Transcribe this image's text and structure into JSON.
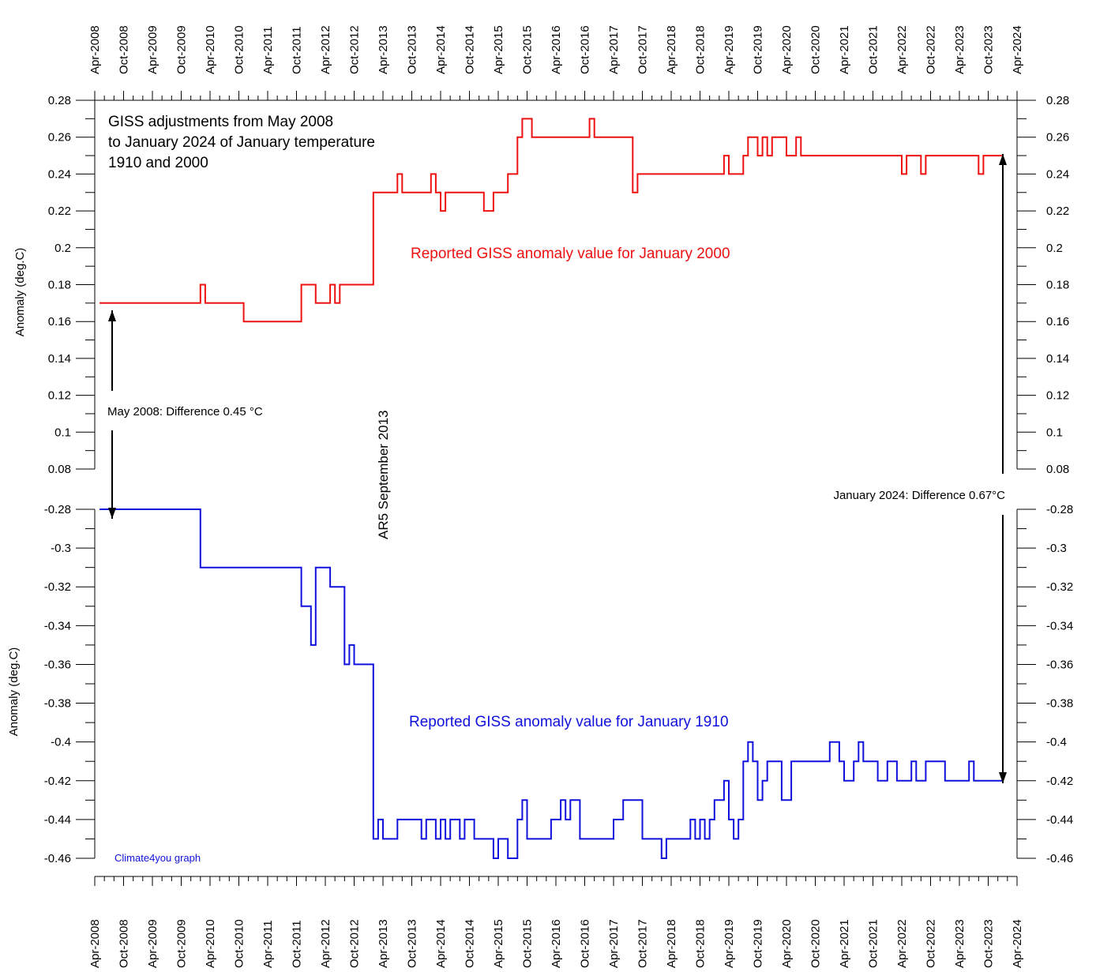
{
  "chart_data": {
    "type": "line",
    "title_lines": [
      "GISS adjustments from May 2008",
      "to January 2024 of January temperature",
      "1910 and 2000"
    ],
    "x_tick_labels": [
      "Apr-2008",
      "Oct-2008",
      "Apr-2009",
      "Oct-2009",
      "Apr-2010",
      "Oct-2010",
      "Apr-2011",
      "Oct-2011",
      "Apr-2012",
      "Oct-2012",
      "Apr-2013",
      "Oct-2013",
      "Apr-2014",
      "Oct-2014",
      "Apr-2015",
      "Oct-2015",
      "Apr-2016",
      "Oct-2016",
      "Apr-2017",
      "Oct-2017",
      "Apr-2018",
      "Oct-2018",
      "Apr-2019",
      "Oct-2019",
      "Apr-2020",
      "Oct-2020",
      "Apr-2021",
      "Oct-2021",
      "Apr-2022",
      "Oct-2022",
      "Apr-2023",
      "Oct-2023",
      "Apr-2024"
    ],
    "x_range": [
      "2008-04",
      "2024-04"
    ],
    "upper_panel": {
      "ylabel": "Anomaly (deg.C)",
      "ylim": [
        0.08,
        0.28
      ],
      "yticks": [
        "0.28",
        "0.26",
        "0.24",
        "0.22",
        "0.2",
        "0.18",
        "0.16",
        "0.14",
        "0.12",
        "0.1",
        "0.08"
      ],
      "series": {
        "name": "Reported GISS anomaly value for January 2000",
        "color": "#ee1111",
        "x": [
          "2008-05",
          "2010-02",
          "2010-03",
          "2010-11",
          "2011-11",
          "2012-02",
          "2012-05",
          "2012-06",
          "2012-07",
          "2012-09",
          "2013-02",
          "2013-07",
          "2013-08",
          "2014-02",
          "2014-03",
          "2014-04",
          "2014-05",
          "2015-01",
          "2015-03",
          "2015-06",
          "2015-08",
          "2015-09",
          "2015-10",
          "2015-11",
          "2016-11",
          "2016-12",
          "2017-08",
          "2017-09",
          "2019-03",
          "2019-04",
          "2019-07",
          "2019-08",
          "2019-10",
          "2019-11",
          "2019-12",
          "2020-01",
          "2020-04",
          "2020-06",
          "2020-07",
          "2022-04",
          "2022-05",
          "2022-08",
          "2022-09",
          "2023-08",
          "2023-09",
          "2023-11"
        ],
        "values": [
          0.17,
          0.18,
          0.17,
          0.16,
          0.18,
          0.17,
          0.18,
          0.17,
          0.18,
          0.18,
          0.23,
          0.24,
          0.23,
          0.24,
          0.23,
          0.22,
          0.23,
          0.22,
          0.23,
          0.24,
          0.26,
          0.27,
          0.27,
          0.26,
          0.27,
          0.26,
          0.23,
          0.24,
          0.25,
          0.24,
          0.25,
          0.26,
          0.25,
          0.26,
          0.25,
          0.26,
          0.25,
          0.26,
          0.25,
          0.24,
          0.25,
          0.24,
          0.25,
          0.24,
          0.25,
          0.25
        ],
        "end": "2024-01"
      }
    },
    "lower_panel": {
      "ylabel": "Anomaly (deg.C)",
      "ylim": [
        -0.46,
        -0.28
      ],
      "yticks": [
        "-0.28",
        "-0.3",
        "-0.32",
        "-0.34",
        "-0.36",
        "-0.38",
        "-0.4",
        "-0.42",
        "-0.44",
        "-0.46"
      ],
      "series": {
        "name": "Reported GISS anomaly value for January 1910",
        "color": "#1111dd",
        "x": [
          "2008-05",
          "2010-02",
          "2011-11",
          "2012-01",
          "2012-02",
          "2012-05",
          "2012-06",
          "2012-08",
          "2012-09",
          "2012-10",
          "2012-11",
          "2013-02",
          "2013-03",
          "2013-04",
          "2013-07",
          "2013-12",
          "2014-01",
          "2014-03",
          "2014-04",
          "2014-05",
          "2014-06",
          "2014-08",
          "2014-09",
          "2014-11",
          "2015-02",
          "2015-03",
          "2015-04",
          "2015-06",
          "2015-08",
          "2015-09",
          "2015-10",
          "2016-03",
          "2016-05",
          "2016-06",
          "2016-07",
          "2016-09",
          "2016-11",
          "2017-04",
          "2017-06",
          "2017-10",
          "2018-02",
          "2018-03",
          "2018-08",
          "2018-09",
          "2018-10",
          "2018-11",
          "2018-12",
          "2019-01",
          "2019-03",
          "2019-04",
          "2019-05",
          "2019-06",
          "2019-07",
          "2019-08",
          "2019-09",
          "2019-10",
          "2019-11",
          "2019-12",
          "2020-03",
          "2020-05",
          "2020-06",
          "2020-07",
          "2020-08",
          "2021-01",
          "2021-03",
          "2021-04",
          "2021-06",
          "2021-07",
          "2021-08",
          "2021-09",
          "2021-11",
          "2022-01",
          "2022-03",
          "2022-04",
          "2022-06",
          "2022-07",
          "2022-09",
          "2022-10",
          "2022-12",
          "2023-01",
          "2023-02",
          "2023-03",
          "2023-06",
          "2023-07",
          "2023-09",
          "2023-10",
          "2023-11"
        ],
        "values": [
          -0.28,
          -0.31,
          -0.33,
          -0.35,
          -0.31,
          -0.32,
          -0.32,
          -0.36,
          -0.35,
          -0.36,
          -0.36,
          -0.45,
          -0.44,
          -0.45,
          -0.44,
          -0.45,
          -0.44,
          -0.45,
          -0.44,
          -0.45,
          -0.44,
          -0.45,
          -0.44,
          -0.45,
          -0.45,
          -0.46,
          -0.45,
          -0.46,
          -0.44,
          -0.43,
          -0.45,
          -0.44,
          -0.43,
          -0.44,
          -0.43,
          -0.45,
          -0.45,
          -0.44,
          -0.43,
          -0.45,
          -0.46,
          -0.45,
          -0.44,
          -0.45,
          -0.44,
          -0.45,
          -0.44,
          -0.43,
          -0.42,
          -0.44,
          -0.45,
          -0.44,
          -0.41,
          -0.4,
          -0.41,
          -0.43,
          -0.42,
          -0.41,
          -0.43,
          -0.41,
          -0.41,
          -0.41,
          -0.41,
          -0.4,
          -0.41,
          -0.42,
          -0.41,
          -0.4,
          -0.41,
          -0.41,
          -0.42,
          -0.41,
          -0.42,
          -0.42,
          -0.41,
          -0.42,
          -0.41,
          -0.41,
          -0.41,
          -0.42,
          -0.42,
          -0.42,
          -0.41,
          -0.42,
          -0.42,
          -0.42,
          -0.42
        ],
        "end": "2024-01"
      }
    },
    "annotations": {
      "may_2008": "May 2008: Difference 0.45 °C",
      "jan_2024": "January 2024: Difference 0.67°C",
      "ar5": "AR5 September 2013",
      "credit": "Climate4you graph"
    },
    "grid": false,
    "legend": "none"
  }
}
